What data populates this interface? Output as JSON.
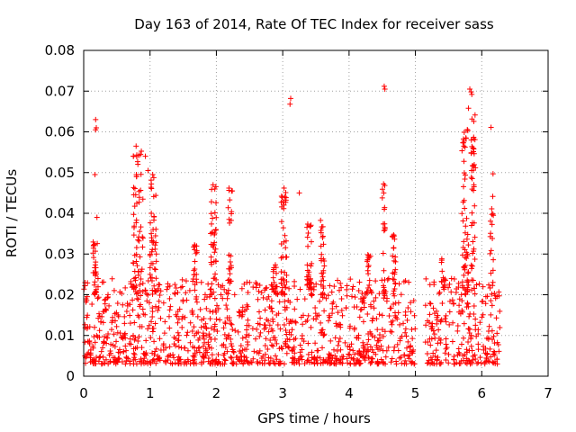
{
  "chart_data": {
    "type": "scatter",
    "title": "Day 163 of 2014, Rate Of TEC Index for receiver sass",
    "xlabel": "GPS time / hours",
    "ylabel": "ROTI / TECUs",
    "xlim": [
      0,
      7
    ],
    "ylim": [
      0,
      0.08
    ],
    "xticks": [
      0,
      1,
      2,
      3,
      4,
      5,
      6,
      7
    ],
    "xtick_labels": [
      "0",
      "1",
      "2",
      "3",
      "4",
      "5",
      "6",
      "7"
    ],
    "yticks": [
      0,
      0.01,
      0.02,
      0.03,
      0.04,
      0.05,
      0.06,
      0.07,
      0.08
    ],
    "ytick_labels": [
      "0",
      "0.01",
      "0.02",
      "0.03",
      "0.04",
      "0.05",
      "0.06",
      "0.07",
      "0.08"
    ],
    "grid": true,
    "marker": "+",
    "marker_color": "#ff0000",
    "x_data_range": [
      0.0,
      6.28
    ],
    "gap": [
      5.0,
      5.15
    ],
    "series": [
      {
        "name": "ROTI",
        "dense_band": {
          "x_range": [
            0.0,
            6.28
          ],
          "y_range": [
            0.003,
            0.024
          ],
          "points_per_hour": 220
        },
        "bursts": [
          {
            "x_center": 0.18,
            "x_width": 0.08,
            "y_min": 0.02,
            "y_max": 0.033,
            "count": 25
          },
          {
            "x_center": 0.82,
            "x_width": 0.15,
            "y_min": 0.02,
            "y_max": 0.056,
            "count": 65
          },
          {
            "x_center": 1.05,
            "x_width": 0.1,
            "y_min": 0.02,
            "y_max": 0.049,
            "count": 45
          },
          {
            "x_center": 1.68,
            "x_width": 0.06,
            "y_min": 0.02,
            "y_max": 0.033,
            "count": 18
          },
          {
            "x_center": 1.95,
            "x_width": 0.1,
            "y_min": 0.02,
            "y_max": 0.047,
            "count": 40
          },
          {
            "x_center": 2.2,
            "x_width": 0.06,
            "y_min": 0.02,
            "y_max": 0.046,
            "count": 22
          },
          {
            "x_center": 2.88,
            "x_width": 0.05,
            "y_min": 0.02,
            "y_max": 0.03,
            "count": 14
          },
          {
            "x_center": 3.02,
            "x_width": 0.09,
            "y_min": 0.02,
            "y_max": 0.046,
            "count": 40
          },
          {
            "x_center": 3.4,
            "x_width": 0.07,
            "y_min": 0.02,
            "y_max": 0.038,
            "count": 32
          },
          {
            "x_center": 3.6,
            "x_width": 0.06,
            "y_min": 0.02,
            "y_max": 0.04,
            "count": 28
          },
          {
            "x_center": 4.3,
            "x_width": 0.07,
            "y_min": 0.02,
            "y_max": 0.03,
            "count": 18
          },
          {
            "x_center": 4.52,
            "x_width": 0.05,
            "y_min": 0.02,
            "y_max": 0.047,
            "count": 20
          },
          {
            "x_center": 4.68,
            "x_width": 0.06,
            "y_min": 0.02,
            "y_max": 0.035,
            "count": 20
          },
          {
            "x_center": 5.42,
            "x_width": 0.06,
            "y_min": 0.02,
            "y_max": 0.029,
            "count": 12
          },
          {
            "x_center": 5.75,
            "x_width": 0.1,
            "y_min": 0.02,
            "y_max": 0.061,
            "count": 55
          },
          {
            "x_center": 5.87,
            "x_width": 0.07,
            "y_min": 0.02,
            "y_max": 0.066,
            "count": 45
          },
          {
            "x_center": 6.15,
            "x_width": 0.05,
            "y_min": 0.02,
            "y_max": 0.05,
            "count": 18
          }
        ],
        "outliers": [
          [
            0.18,
            0.063
          ],
          [
            0.19,
            0.061
          ],
          [
            0.18,
            0.0605
          ],
          [
            0.17,
            0.0495
          ],
          [
            0.2,
            0.039
          ],
          [
            0.79,
            0.0565
          ],
          [
            0.75,
            0.054
          ],
          [
            0.93,
            0.054
          ],
          [
            0.97,
            0.0505
          ],
          [
            1.04,
            0.0495
          ],
          [
            1.02,
            0.0472
          ],
          [
            1.95,
            0.047
          ],
          [
            2.19,
            0.0462
          ],
          [
            2.24,
            0.0455
          ],
          [
            3.02,
            0.0462
          ],
          [
            3.12,
            0.0682
          ],
          [
            3.11,
            0.0668
          ],
          [
            3.25,
            0.045
          ],
          [
            4.53,
            0.0712
          ],
          [
            4.54,
            0.0705
          ],
          [
            4.52,
            0.0472
          ],
          [
            5.82,
            0.0705
          ],
          [
            5.84,
            0.0698
          ],
          [
            5.85,
            0.0692
          ],
          [
            5.8,
            0.0658
          ],
          [
            5.79,
            0.0603
          ],
          [
            5.76,
            0.0585
          ],
          [
            5.73,
            0.0565
          ],
          [
            6.14,
            0.0611
          ],
          [
            6.17,
            0.0497
          ]
        ]
      }
    ]
  }
}
